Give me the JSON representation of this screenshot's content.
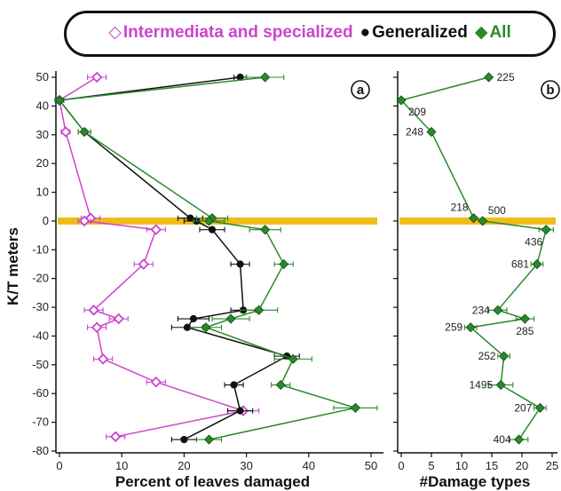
{
  "legend": {
    "position": "top",
    "entries": [
      {
        "glyph": "◇",
        "label": "Intermediata and specialized",
        "color": "#cc44cc"
      },
      {
        "glyph": "●",
        "label": "Generalized",
        "color": "#111111"
      },
      {
        "glyph": "◆",
        "label": "All",
        "color": "#2a8a2a"
      }
    ]
  },
  "colors": {
    "intermediate": "#cc44cc",
    "generalized": "#111111",
    "all": "#2a8a2a",
    "boundary": "#f0b400"
  },
  "chart_data": [
    {
      "type": "line",
      "panel_label": "a",
      "xlabel": "Percent of leaves damaged",
      "ylabel": "K/T meters",
      "xlim": [
        0,
        50
      ],
      "ylim": [
        -80,
        55
      ],
      "x_ticks": [
        0,
        10,
        20,
        30,
        40,
        50
      ],
      "y_ticks": [
        -80,
        -70,
        -60,
        -50,
        -40,
        -30,
        -20,
        -10,
        0,
        10,
        20,
        30,
        40,
        50
      ],
      "boundary_y": 0,
      "series": [
        {
          "name": "Intermediata and specialized",
          "color_key": "intermediate",
          "marker": "open-diamond",
          "points": [
            {
              "y": 50,
              "x": 6,
              "err": 1.5
            },
            {
              "y": 42,
              "x": 0,
              "err": 0.7
            },
            {
              "y": 31,
              "x": 1,
              "err": 0.7
            },
            {
              "y": 1,
              "x": 5,
              "err": 1.5
            },
            {
              "y": 0,
              "x": 4,
              "err": 1
            },
            {
              "y": -3,
              "x": 15.5,
              "err": 1.5
            },
            {
              "y": -15,
              "x": 13.5,
              "err": 1.5
            },
            {
              "y": -31,
              "x": 5.5,
              "err": 1.5
            },
            {
              "y": -34,
              "x": 9.5,
              "err": 1.5
            },
            {
              "y": -37,
              "x": 6,
              "err": 1.5
            },
            {
              "y": -48,
              "x": 7,
              "err": 1.5
            },
            {
              "y": -56,
              "x": 15.5,
              "err": 1.5
            },
            {
              "y": -66,
              "x": 29.5,
              "err": 2.5
            },
            {
              "y": -75,
              "x": 9,
              "err": 1.5
            }
          ]
        },
        {
          "name": "Generalized",
          "color_key": "generalized",
          "marker": "filled-circle",
          "points": [
            {
              "y": 50,
              "x": 29,
              "err": 1
            },
            {
              "y": 42,
              "x": 0,
              "err": 0.7
            },
            {
              "y": 31,
              "x": 4,
              "err": 1
            },
            {
              "y": 1,
              "x": 21,
              "err": 2
            },
            {
              "y": 0,
              "x": 22,
              "err": 2
            },
            {
              "y": -3,
              "x": 24.5,
              "err": 2
            },
            {
              "y": -15,
              "x": 29,
              "err": 1.5
            },
            {
              "y": -31,
              "x": 29.5,
              "err": 2
            },
            {
              "y": -34,
              "x": 21.5,
              "err": 2.5
            },
            {
              "y": -37,
              "x": 20.5,
              "err": 2.5
            },
            {
              "y": -47,
              "x": 36.5,
              "err": 2
            },
            {
              "y": -57,
              "x": 28,
              "err": 1.5
            },
            {
              "y": -66,
              "x": 29,
              "err": 2
            },
            {
              "y": -76,
              "x": 20,
              "err": 2
            }
          ]
        },
        {
          "name": "All",
          "color_key": "all",
          "marker": "filled-diamond",
          "points": [
            {
              "y": 50,
              "x": 33,
              "err": 3
            },
            {
              "y": 42,
              "x": 0,
              "err": 0.7
            },
            {
              "y": 31,
              "x": 4,
              "err": 1
            },
            {
              "y": 1,
              "x": 24.5,
              "err": 2.5
            },
            {
              "y": 0,
              "x": 24,
              "err": 2.5
            },
            {
              "y": -3,
              "x": 33,
              "err": 2.5
            },
            {
              "y": -15,
              "x": 36,
              "err": 1.5
            },
            {
              "y": -31,
              "x": 32,
              "err": 3
            },
            {
              "y": -34,
              "x": 27.5,
              "err": 3
            },
            {
              "y": -37,
              "x": 23.5,
              "err": 2.5
            },
            {
              "y": -48,
              "x": 37.5,
              "err": 3
            },
            {
              "y": -57,
              "x": 35.5,
              "err": 1.5
            },
            {
              "y": -65,
              "x": 47.5,
              "err": 3.5
            },
            {
              "y": -76,
              "x": 24,
              "err": 2
            }
          ]
        }
      ]
    },
    {
      "type": "line",
      "panel_label": "b",
      "xlabel": "#Damage types",
      "ylabel": "",
      "xlim": [
        0,
        26
      ],
      "ylim": [
        -80,
        55
      ],
      "x_ticks": [
        0,
        5,
        10,
        15,
        20,
        25
      ],
      "boundary_y": 0,
      "series": [
        {
          "name": "",
          "color_key": "all",
          "marker": "filled-diamond",
          "points": [
            {
              "y": 50,
              "x": 14.5,
              "label": "225",
              "label_side": "right"
            },
            {
              "y": 42,
              "x": 0,
              "label": "209",
              "label_side": "below-right"
            },
            {
              "y": 31,
              "x": 5,
              "label": "248",
              "label_side": "left"
            },
            {
              "y": 1,
              "x": 12,
              "label": "218",
              "label_side": "above-left"
            },
            {
              "y": 0,
              "x": 13.5,
              "label": "500",
              "label_side": "above-right"
            },
            {
              "y": -3,
              "x": 24,
              "err": 1.2,
              "label": "436",
              "label_side": "below-left"
            },
            {
              "y": -15,
              "x": 22.5,
              "err": 1,
              "label": "681",
              "label_side": "left"
            },
            {
              "y": -31,
              "x": 16,
              "err": 1.5,
              "label": "234",
              "label_side": "left"
            },
            {
              "y": -34,
              "x": 20.5,
              "err": 1.5,
              "label": "285",
              "label_side": "below"
            },
            {
              "y": -37,
              "x": 11.5,
              "err": 1,
              "label": "259",
              "label_side": "left"
            },
            {
              "y": -47,
              "x": 17,
              "err": 1,
              "label": "252",
              "label_side": "left"
            },
            {
              "y": -57,
              "x": 16.5,
              "err": 2,
              "label": "1495",
              "label_side": "left"
            },
            {
              "y": -65,
              "x": 23,
              "err": 1,
              "label": "207",
              "label_side": "left"
            },
            {
              "y": -76,
              "x": 19.5,
              "err": 1.5,
              "label": "404",
              "label_side": "left"
            }
          ]
        }
      ]
    }
  ]
}
